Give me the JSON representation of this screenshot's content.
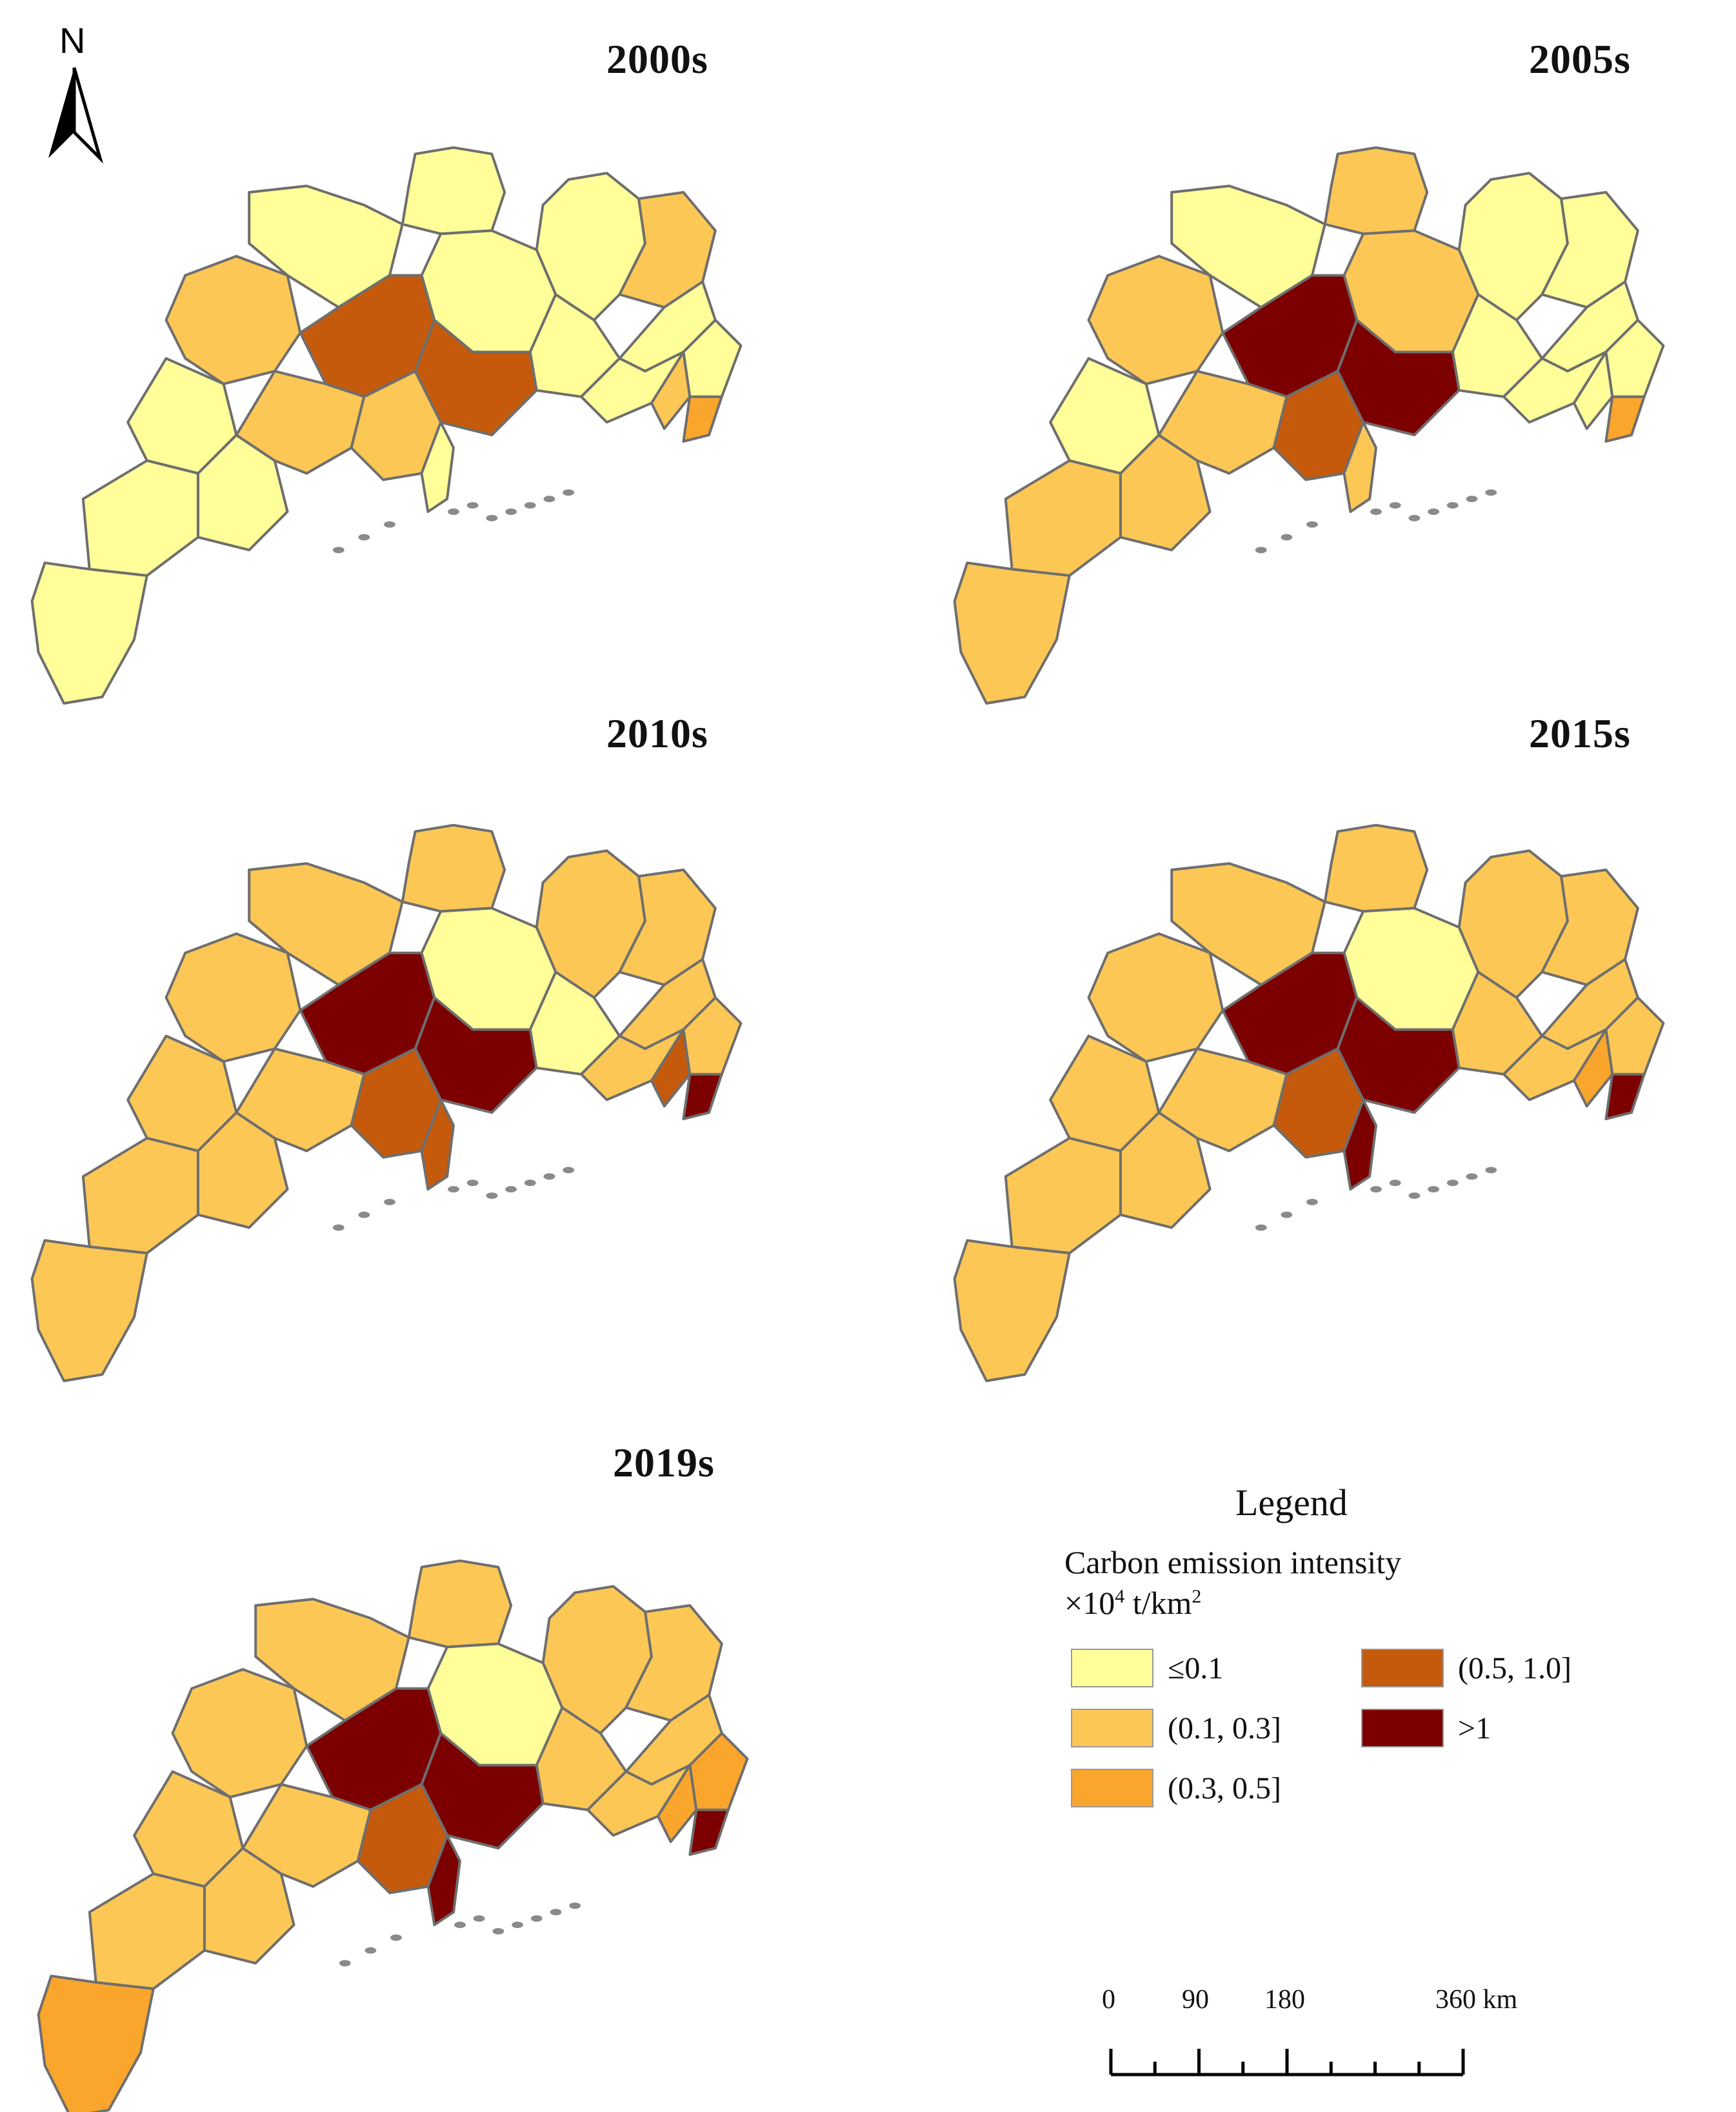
{
  "north": {
    "label": "N",
    "icon": "north-arrow-icon"
  },
  "maps": [
    {
      "title": "2000s",
      "colors": [
        "c1",
        "c1",
        "c1",
        "c1",
        "c2",
        "c2",
        "c1",
        "c1",
        "c1",
        "c1",
        "c4",
        "c4",
        "c1",
        "c1",
        "c2",
        "c2",
        "c1",
        "c1",
        "c2",
        "c3",
        "c1"
      ]
    },
    {
      "title": "2005s",
      "colors": [
        "c2",
        "c1",
        "c1",
        "c2",
        "c1",
        "c2",
        "c1",
        "c2",
        "c2",
        "c1",
        "c5",
        "c5",
        "c1",
        "c1",
        "c2",
        "c4",
        "c2",
        "c1",
        "c1",
        "c3",
        "c2"
      ]
    },
    {
      "title": "2010s",
      "colors": [
        "c2",
        "c2",
        "c2",
        "c1",
        "c2",
        "c2",
        "c2",
        "c2",
        "c2",
        "c1",
        "c5",
        "c5",
        "c2",
        "c2",
        "c2",
        "c4",
        "c4",
        "c2",
        "c4",
        "c5",
        "c2"
      ]
    },
    {
      "title": "2015s",
      "colors": [
        "c2",
        "c2",
        "c2",
        "c1",
        "c2",
        "c2",
        "c2",
        "c2",
        "c2",
        "c2",
        "c5",
        "c5",
        "c2",
        "c2",
        "c2",
        "c4",
        "c5",
        "c2",
        "c3",
        "c5",
        "c2"
      ]
    },
    {
      "title": "2019s",
      "colors": [
        "c2",
        "c2",
        "c2",
        "c1",
        "c2",
        "c2",
        "c2",
        "c2",
        "c2",
        "c2",
        "c5",
        "c5",
        "c2",
        "c2",
        "c2",
        "c4",
        "c5",
        "c3",
        "c3",
        "c5",
        "c3"
      ]
    }
  ],
  "legend": {
    "title": "Legend",
    "subtitle_line1": "Carbon emission intensity",
    "subtitle_prefix": "×10",
    "subtitle_exp": "4",
    "subtitle_unit": " t/km",
    "subtitle_unit_exp": "2",
    "classes": [
      {
        "key": "c1",
        "label": "≤0.1",
        "color": "#ffff99"
      },
      {
        "key": "c2",
        "label": "(0.1, 0.3]",
        "color": "#fcc755"
      },
      {
        "key": "c3",
        "label": "(0.3, 0.5]",
        "color": "#faa52c"
      },
      {
        "key": "c4",
        "label": "(0.5, 1.0]",
        "color": "#c55a0c"
      },
      {
        "key": "c5",
        "label": ">1",
        "color": "#7c0000"
      }
    ]
  },
  "scale_bar": {
    "ticks": [
      "0",
      "90",
      "180",
      "360 km"
    ]
  }
}
